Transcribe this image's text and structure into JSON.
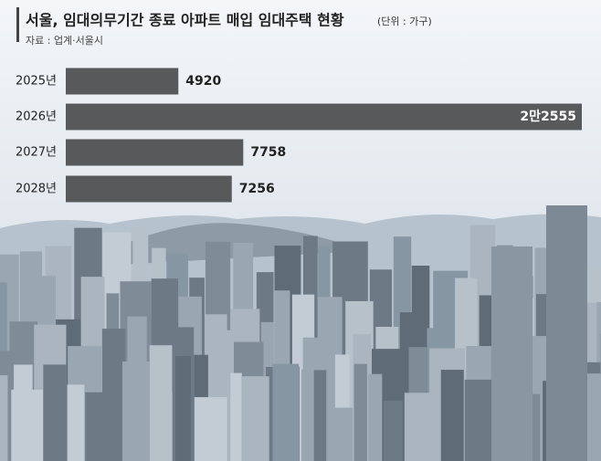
{
  "chart_data": {
    "type": "bar",
    "orientation": "horizontal",
    "title": "서울, 임대의무기간 종료 아파트 매입 임대주택 현황",
    "subtitle": "(단위 : 가구)",
    "source": "자료 : 업계·서울시",
    "categories": [
      "2025년",
      "2026년",
      "2027년",
      "2028년"
    ],
    "values": [
      4920,
      22555,
      7758,
      7256
    ],
    "value_labels": [
      "4920",
      "2만2555",
      "7758",
      "7256"
    ],
    "color": "#58595b"
  }
}
